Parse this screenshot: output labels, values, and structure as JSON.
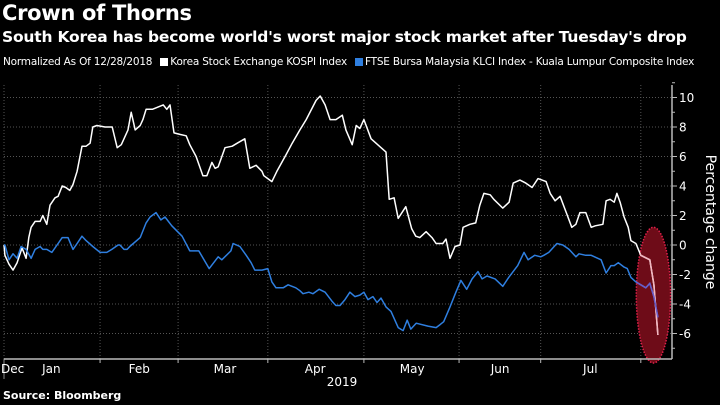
{
  "header": {
    "title": "Crown of Thorns",
    "subtitle": "South Korea has become world's worst major stock market after Tuesday's drop"
  },
  "footer": {
    "source": "Source: Bloomberg"
  },
  "chart_data": {
    "type": "line",
    "title": "Crown of Thorns",
    "subtitle": "South Korea has become world's worst major stock market after Tuesday's drop",
    "legend_note": "Normalized As Of 12/28/2018",
    "legend_placement": "top-left",
    "xlabel": "2019",
    "ylabel": "Percentage change",
    "x_unit": "trading days since 12/28/2018",
    "xlim": [
      0,
      148
    ],
    "ylim": [
      -7.7,
      11
    ],
    "yticks": [
      -6,
      -4,
      -2,
      0,
      2,
      4,
      6,
      8,
      10
    ],
    "grid": true,
    "month_boundaries": [
      21.3,
      38.6,
      58.5,
      79.8,
      100.9,
      119,
      141.2
    ],
    "x_tick_labels": [
      {
        "label": "Dec",
        "at": -1
      },
      {
        "label": "Jan",
        "at": 10.5
      },
      {
        "label": "Feb",
        "at": 30
      },
      {
        "label": "Mar",
        "at": 49
      },
      {
        "label": "Apr",
        "at": 69
      },
      {
        "label": "May",
        "at": 90.5
      },
      {
        "label": "Jun",
        "at": 110
      },
      {
        "label": "Jul",
        "at": 130
      }
    ],
    "highlight": {
      "type": "ellipse",
      "center_x": 144,
      "center_y": -3.4,
      "radius_x_days": 3.8,
      "radius_y_units": 4.6,
      "fill": "#6e0c18",
      "stroke": "#e0204a"
    },
    "series": [
      {
        "name": "Korea Stock Exchange KOSPI Index",
        "color": "#ffffff",
        "points": [
          [
            0,
            0
          ],
          [
            0.2,
            -0.7
          ],
          [
            1.1,
            -1.3
          ],
          [
            2,
            -1.7
          ],
          [
            2.9,
            -1.2
          ],
          [
            4,
            -0.2
          ],
          [
            4.9,
            -0.9
          ],
          [
            5.5,
            0.5
          ],
          [
            6,
            1.2
          ],
          [
            6.9,
            1.6
          ],
          [
            8,
            1.6
          ],
          [
            8.6,
            2
          ],
          [
            9.5,
            1.4
          ],
          [
            10.2,
            2.7
          ],
          [
            11.3,
            3.2
          ],
          [
            12,
            3.3
          ],
          [
            12.9,
            4
          ],
          [
            13.7,
            3.9
          ],
          [
            14.6,
            3.7
          ],
          [
            15.3,
            4.1
          ],
          [
            16.2,
            5
          ],
          [
            17.3,
            6.7
          ],
          [
            18.2,
            6.7
          ],
          [
            19.1,
            6.9
          ],
          [
            19.7,
            8
          ],
          [
            20.6,
            8.1
          ],
          [
            22.4,
            8
          ],
          [
            24,
            8
          ],
          [
            25.1,
            6.6
          ],
          [
            26,
            6.8
          ],
          [
            27.5,
            7.8
          ],
          [
            28.2,
            9
          ],
          [
            29.1,
            7.8
          ],
          [
            30.2,
            8.1
          ],
          [
            30.8,
            8.5
          ],
          [
            31.5,
            9.2
          ],
          [
            32.9,
            9.2
          ],
          [
            35.3,
            9.5
          ],
          [
            36.1,
            9.2
          ],
          [
            36.8,
            9.5
          ],
          [
            37.7,
            7.6
          ],
          [
            39,
            7.5
          ],
          [
            40.4,
            7.4
          ],
          [
            41.2,
            6.8
          ],
          [
            42.6,
            6.0
          ],
          [
            44.1,
            4.7
          ],
          [
            45,
            4.7
          ],
          [
            46.1,
            5.6
          ],
          [
            46.8,
            5.2
          ],
          [
            47.5,
            5.3
          ],
          [
            49,
            6.6
          ],
          [
            50.6,
            6.7
          ],
          [
            51.7,
            6.9
          ],
          [
            53.4,
            7.2
          ],
          [
            54.5,
            5.2
          ],
          [
            55.9,
            5.4
          ],
          [
            57.2,
            5
          ],
          [
            57.6,
            4.7
          ],
          [
            58.5,
            4.5
          ],
          [
            59.4,
            4.3
          ],
          [
            60.5,
            5
          ],
          [
            62.5,
            6.1
          ],
          [
            63.9,
            6.9
          ],
          [
            65.6,
            7.8
          ],
          [
            67,
            8.5
          ],
          [
            69.2,
            9.8
          ],
          [
            70.1,
            10.1
          ],
          [
            71.2,
            9.5
          ],
          [
            72.3,
            8.5
          ],
          [
            73.6,
            8.5
          ],
          [
            75,
            8.8
          ],
          [
            75.8,
            7.8
          ],
          [
            77.2,
            6.8
          ],
          [
            78.1,
            8.1
          ],
          [
            78.9,
            7.9
          ],
          [
            79.8,
            8.5
          ],
          [
            81.4,
            7.2
          ],
          [
            84.7,
            6.3
          ],
          [
            85.4,
            3.1
          ],
          [
            86.5,
            3.2
          ],
          [
            87.4,
            1.8
          ],
          [
            89.1,
            2.6
          ],
          [
            90.4,
            1.1
          ],
          [
            91.3,
            0.6
          ],
          [
            92.2,
            0.5
          ],
          [
            93.6,
            0.9
          ],
          [
            94.9,
            0.5
          ],
          [
            95.8,
            0.1
          ],
          [
            97.3,
            0.1
          ],
          [
            98,
            0.4
          ],
          [
            98.9,
            -0.9
          ],
          [
            100,
            -0.1
          ],
          [
            101.1,
            0
          ],
          [
            101.8,
            1.2
          ],
          [
            103.3,
            1.4
          ],
          [
            104.6,
            1.5
          ],
          [
            105.5,
            2.7
          ],
          [
            106.4,
            3.5
          ],
          [
            107.8,
            3.4
          ],
          [
            108.6,
            3.1
          ],
          [
            110.6,
            2.5
          ],
          [
            112,
            2.9
          ],
          [
            112.9,
            4.2
          ],
          [
            114.4,
            4.4
          ],
          [
            115.7,
            4.2
          ],
          [
            117.1,
            3.9
          ],
          [
            118.4,
            4.5
          ],
          [
            120.2,
            4.3
          ],
          [
            121.1,
            3.5
          ],
          [
            122.2,
            3
          ],
          [
            123.3,
            3.3
          ],
          [
            124.8,
            2.1
          ],
          [
            125.9,
            1.2
          ],
          [
            126.8,
            1.4
          ],
          [
            127.7,
            2.2
          ],
          [
            129,
            2.2
          ],
          [
            130.2,
            1.2
          ],
          [
            131.1,
            1.3
          ],
          [
            132.8,
            1.4
          ],
          [
            133.5,
            3
          ],
          [
            134.4,
            3.1
          ],
          [
            135.3,
            2.9
          ],
          [
            135.9,
            3.5
          ],
          [
            136.6,
            2.9
          ],
          [
            137.5,
            1.9
          ],
          [
            138.4,
            1.2
          ],
          [
            139,
            0.3
          ],
          [
            140.1,
            0.1
          ],
          [
            141.2,
            -0.7
          ],
          [
            143.2,
            -1
          ],
          [
            144.1,
            -2.7
          ],
          [
            145,
            -6.1
          ]
        ]
      },
      {
        "name": "FTSE Bursa Malaysia KLCI Index - Kuala Lumpur Composite Index",
        "color": "#2f7fe0",
        "points": [
          [
            0,
            0
          ],
          [
            0.2,
            0
          ],
          [
            1.1,
            -1
          ],
          [
            2,
            -0.6
          ],
          [
            2.9,
            -0.9
          ],
          [
            3.8,
            -0.1
          ],
          [
            4.9,
            -0.3
          ],
          [
            6,
            -0.9
          ],
          [
            6.9,
            -0.3
          ],
          [
            8,
            -0.1
          ],
          [
            8.6,
            -0.3
          ],
          [
            9.5,
            -0.3
          ],
          [
            10.6,
            -0.5
          ],
          [
            12,
            0.1
          ],
          [
            12.9,
            0.5
          ],
          [
            14.2,
            0.5
          ],
          [
            15.3,
            -0.3
          ],
          [
            16.2,
            0.1
          ],
          [
            17.3,
            0.6
          ],
          [
            18.2,
            0.3
          ],
          [
            19.7,
            -0.1
          ],
          [
            21.3,
            -0.5
          ],
          [
            22.8,
            -0.5
          ],
          [
            23.9,
            -0.3
          ],
          [
            25.3,
            0
          ],
          [
            25.7,
            0
          ],
          [
            26.6,
            -0.3
          ],
          [
            27.3,
            -0.3
          ],
          [
            27.9,
            -0.1
          ],
          [
            30.2,
            0.5
          ],
          [
            31.5,
            1.5
          ],
          [
            32.4,
            1.9
          ],
          [
            33.7,
            2.2
          ],
          [
            34.8,
            1.7
          ],
          [
            35.7,
            1.9
          ],
          [
            37.2,
            1.3
          ],
          [
            39.5,
            0.6
          ],
          [
            41.2,
            -0.4
          ],
          [
            43.2,
            -0.4
          ],
          [
            45.5,
            -1.6
          ],
          [
            47.5,
            -0.8
          ],
          [
            48.3,
            -1
          ],
          [
            50.3,
            -0.4
          ],
          [
            50.8,
            0.1
          ],
          [
            52.3,
            -0.1
          ],
          [
            53.7,
            -0.7
          ],
          [
            54.8,
            -1.2
          ],
          [
            55.6,
            -1.7
          ],
          [
            57.2,
            -1.7
          ],
          [
            58.5,
            -1.6
          ],
          [
            59.4,
            -2.5
          ],
          [
            60.3,
            -2.9
          ],
          [
            61.9,
            -2.9
          ],
          [
            63,
            -2.7
          ],
          [
            64.7,
            -2.9
          ],
          [
            65.6,
            -3.1
          ],
          [
            66.3,
            -3.3
          ],
          [
            67.6,
            -3.2
          ],
          [
            68.5,
            -3.3
          ],
          [
            69.9,
            -3
          ],
          [
            71.2,
            -3.2
          ],
          [
            72.7,
            -3.8
          ],
          [
            73.6,
            -4.1
          ],
          [
            74.5,
            -4.1
          ],
          [
            75.6,
            -3.7
          ],
          [
            76.7,
            -3.2
          ],
          [
            77.8,
            -3.5
          ],
          [
            78.9,
            -3.4
          ],
          [
            79.8,
            -3.2
          ],
          [
            80.7,
            -3.7
          ],
          [
            81.8,
            -3.5
          ],
          [
            82.7,
            -3.9
          ],
          [
            83.6,
            -3.6
          ],
          [
            84.7,
            -4.2
          ],
          [
            85.8,
            -4.5
          ],
          [
            87.4,
            -5.6
          ],
          [
            88.5,
            -5.8
          ],
          [
            89.4,
            -5.1
          ],
          [
            90.2,
            -5.7
          ],
          [
            91.4,
            -5.3
          ],
          [
            94,
            -5.5
          ],
          [
            95.8,
            -5.6
          ],
          [
            96.7,
            -5.4
          ],
          [
            97.5,
            -5.2
          ],
          [
            98.9,
            -4.2
          ],
          [
            100.2,
            -3.2
          ],
          [
            101.3,
            -2.4
          ],
          [
            102.6,
            -3
          ],
          [
            103.8,
            -2.3
          ],
          [
            105.1,
            -1.8
          ],
          [
            106,
            -2.3
          ],
          [
            107.1,
            -2.1
          ],
          [
            108.9,
            -2.3
          ],
          [
            110.6,
            -2.8
          ],
          [
            111.9,
            -2.2
          ],
          [
            113.9,
            -1.4
          ],
          [
            115.3,
            -0.5
          ],
          [
            116.2,
            -1
          ],
          [
            117.7,
            -0.7
          ],
          [
            119,
            -0.8
          ],
          [
            119.7,
            -0.7
          ],
          [
            120.8,
            -0.5
          ],
          [
            122.6,
            0.1
          ],
          [
            123.9,
            0
          ],
          [
            125.3,
            -0.3
          ],
          [
            126.8,
            -0.8
          ],
          [
            127.5,
            -0.6
          ],
          [
            129,
            -0.7
          ],
          [
            130.2,
            -0.7
          ],
          [
            132.4,
            -1
          ],
          [
            133.5,
            -1.9
          ],
          [
            134.6,
            -1.4
          ],
          [
            135.3,
            -1.4
          ],
          [
            136.2,
            -1.2
          ],
          [
            137.5,
            -1.5
          ],
          [
            138.2,
            -1.6
          ],
          [
            139,
            -2.2
          ],
          [
            140.1,
            -2.5
          ],
          [
            141.2,
            -2.7
          ],
          [
            142.3,
            -2.9
          ],
          [
            143.2,
            -2.6
          ],
          [
            144.1,
            -3.5
          ],
          [
            145,
            -4.9
          ]
        ]
      }
    ]
  }
}
